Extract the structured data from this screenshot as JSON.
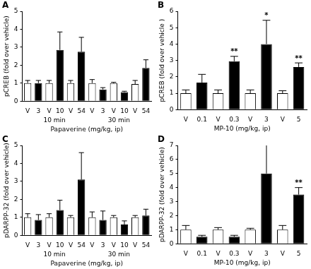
{
  "chart_data": [
    {
      "type": "bar",
      "panel": "A",
      "y_label": "pCREB (fold over vehicle)",
      "x_label": "Papaverine (mg/kg, ip)",
      "categories": [
        "V",
        "3",
        "V",
        "10",
        "V",
        "54",
        "V",
        "3",
        "V",
        "10",
        "V",
        "54"
      ],
      "groups": [
        "10 min",
        "10 min",
        "10 min",
        "10 min",
        "10 min",
        "10 min",
        "30 min",
        "30 min",
        "30 min",
        "30 min",
        "30 min",
        "30 min"
      ],
      "values": [
        1.0,
        1.0,
        1.0,
        2.85,
        1.0,
        2.75,
        1.0,
        0.65,
        1.0,
        0.5,
        0.95,
        1.85
      ],
      "errors": [
        0.15,
        0.15,
        0.15,
        1.0,
        0.15,
        0.8,
        0.2,
        0.1,
        0.05,
        0.05,
        0.2,
        0.45
      ],
      "colors": [
        "#ffffff",
        "#000000",
        "#ffffff",
        "#000000",
        "#ffffff",
        "#000000",
        "#ffffff",
        "#000000",
        "#ffffff",
        "#000000",
        "#ffffff",
        "#000000"
      ],
      "ylim": [
        0,
        5
      ],
      "yticks": [
        0,
        1,
        2,
        3,
        4,
        5
      ],
      "grid": false
    },
    {
      "type": "bar",
      "panel": "B",
      "y_label": "pCREB (fold over vehicle )",
      "x_label": "MP-10 (mg/kg, ip)",
      "categories": [
        "V",
        "0.1",
        "V",
        "0.3",
        "V",
        "3",
        "V",
        "5"
      ],
      "values": [
        1.0,
        1.65,
        1.0,
        2.95,
        1.0,
        4.0,
        1.0,
        2.6
      ],
      "errors": [
        0.2,
        0.5,
        0.2,
        0.3,
        0.2,
        1.45,
        0.15,
        0.25
      ],
      "significance": [
        null,
        null,
        null,
        "**",
        null,
        "*",
        null,
        "**"
      ],
      "colors": [
        "#ffffff",
        "#000000",
        "#ffffff",
        "#000000",
        "#ffffff",
        "#000000",
        "#ffffff",
        "#000000"
      ],
      "ylim": [
        0,
        6
      ],
      "yticks": [
        0,
        1,
        2,
        3,
        4,
        5,
        6
      ],
      "grid": false
    },
    {
      "type": "bar",
      "panel": "C",
      "y_label": "pDARPP-32 (fold over vehicle)",
      "x_label": "Papaverine (mg/kg, ip)",
      "categories": [
        "V",
        "3",
        "V",
        "10",
        "V",
        "54",
        "V",
        "3",
        "V",
        "10",
        "V",
        "54"
      ],
      "groups": [
        "10 min",
        "10 min",
        "10 min",
        "10 min",
        "10 min",
        "10 min",
        "30 min",
        "30 min",
        "30 min",
        "30 min",
        "30 min",
        "30 min"
      ],
      "values": [
        1.0,
        0.85,
        1.0,
        1.4,
        1.0,
        3.1,
        1.0,
        0.85,
        1.0,
        0.6,
        1.0,
        1.1
      ],
      "errors": [
        0.2,
        0.3,
        0.2,
        0.55,
        0.1,
        1.5,
        0.3,
        0.5,
        0.1,
        0.2,
        0.1,
        0.35
      ],
      "colors": [
        "#ffffff",
        "#000000",
        "#ffffff",
        "#000000",
        "#ffffff",
        "#000000",
        "#ffffff",
        "#000000",
        "#ffffff",
        "#000000",
        "#ffffff",
        "#000000"
      ],
      "ylim": [
        0,
        5
      ],
      "yticks": [
        0,
        1,
        2,
        3,
        4,
        5
      ],
      "grid": false
    },
    {
      "type": "bar",
      "panel": "D",
      "y_label": "pDARPP-32 (fold over vehicle)",
      "x_label": "MP-10 (mg/kg, ip)",
      "categories": [
        "V",
        "0.1",
        "V",
        "0.3",
        "V",
        "3",
        "V",
        "5"
      ],
      "values": [
        1.0,
        0.5,
        1.0,
        0.5,
        1.0,
        5.0,
        1.0,
        3.5
      ],
      "errors": [
        0.3,
        0.1,
        0.15,
        0.1,
        0.1,
        2.2,
        0.3,
        0.5
      ],
      "significance": [
        null,
        null,
        null,
        null,
        null,
        null,
        null,
        "**"
      ],
      "colors": [
        "#ffffff",
        "#000000",
        "#ffffff",
        "#000000",
        "#ffffff",
        "#000000",
        "#ffffff",
        "#000000"
      ],
      "ylim": [
        0,
        7
      ],
      "yticks": [
        0,
        1,
        2,
        3,
        4,
        5,
        6,
        7
      ],
      "grid": false
    }
  ]
}
